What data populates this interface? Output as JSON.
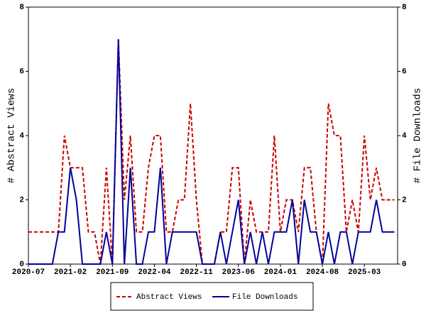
{
  "chart_data": {
    "type": "line",
    "x": [
      "2020-07",
      "2020-08",
      "2020-09",
      "2020-10",
      "2020-11",
      "2020-12",
      "2021-01",
      "2021-02",
      "2021-03",
      "2021-04",
      "2021-05",
      "2021-06",
      "2021-07",
      "2021-08",
      "2021-09",
      "2021-10",
      "2021-11",
      "2021-12",
      "2022-01",
      "2022-02",
      "2022-03",
      "2022-04",
      "2022-05",
      "2022-06",
      "2022-07",
      "2022-08",
      "2022-09",
      "2022-10",
      "2022-11",
      "2022-12",
      "2023-01",
      "2023-02",
      "2023-03",
      "2023-04",
      "2023-05",
      "2023-06",
      "2023-07",
      "2023-08",
      "2023-09",
      "2023-10",
      "2023-11",
      "2023-12",
      "2024-01",
      "2024-02",
      "2024-03",
      "2024-04",
      "2024-05",
      "2024-06",
      "2024-07",
      "2024-08",
      "2024-09",
      "2024-10",
      "2024-11",
      "2024-12",
      "2025-01",
      "2025-02",
      "2025-03",
      "2025-04",
      "2025-05",
      "2025-06",
      "2025-07",
      "2025-08"
    ],
    "xticks": [
      "2020-07",
      "2021-02",
      "2021-09",
      "2022-04",
      "2022-11",
      "2023-06",
      "2024-01",
      "2024-08",
      "2025-03"
    ],
    "ylabel": "# Abstract Views",
    "y2label": "# File Downloads",
    "ylim": [
      0,
      8
    ],
    "yticks": [
      0,
      2,
      4,
      6,
      8
    ],
    "y2lim": [
      0,
      8
    ],
    "y2ticks": [
      0,
      2,
      4,
      6,
      8
    ],
    "series": [
      {
        "name": "Abstract Views",
        "color": "#cc0000",
        "dashed": true,
        "values": [
          1,
          1,
          1,
          1,
          1,
          1,
          4,
          3,
          3,
          3,
          1,
          1,
          0,
          3,
          0,
          7,
          2,
          4,
          1,
          1,
          3,
          4,
          4,
          1,
          1,
          2,
          2,
          5,
          2,
          0,
          0,
          0,
          1,
          1,
          3,
          3,
          0,
          2,
          1,
          1,
          1,
          4,
          1,
          2,
          2,
          1,
          3,
          3,
          1,
          0,
          5,
          4,
          4,
          1,
          2,
          1,
          4,
          2,
          3,
          2,
          2,
          2
        ]
      },
      {
        "name": "File Downloads",
        "color": "#000099",
        "axis": "y2",
        "values": [
          0,
          0,
          0,
          0,
          0,
          1,
          1,
          3,
          2,
          0,
          0,
          0,
          0,
          1,
          0,
          7,
          0,
          3,
          0,
          0,
          1,
          1,
          3,
          0,
          1,
          1,
          1,
          1,
          1,
          0,
          0,
          0,
          1,
          0,
          1,
          2,
          0,
          1,
          0,
          1,
          0,
          1,
          1,
          1,
          2,
          0,
          2,
          1,
          1,
          0,
          1,
          0,
          1,
          1,
          0,
          1,
          1,
          1,
          2,
          1,
          1,
          1
        ]
      }
    ]
  }
}
